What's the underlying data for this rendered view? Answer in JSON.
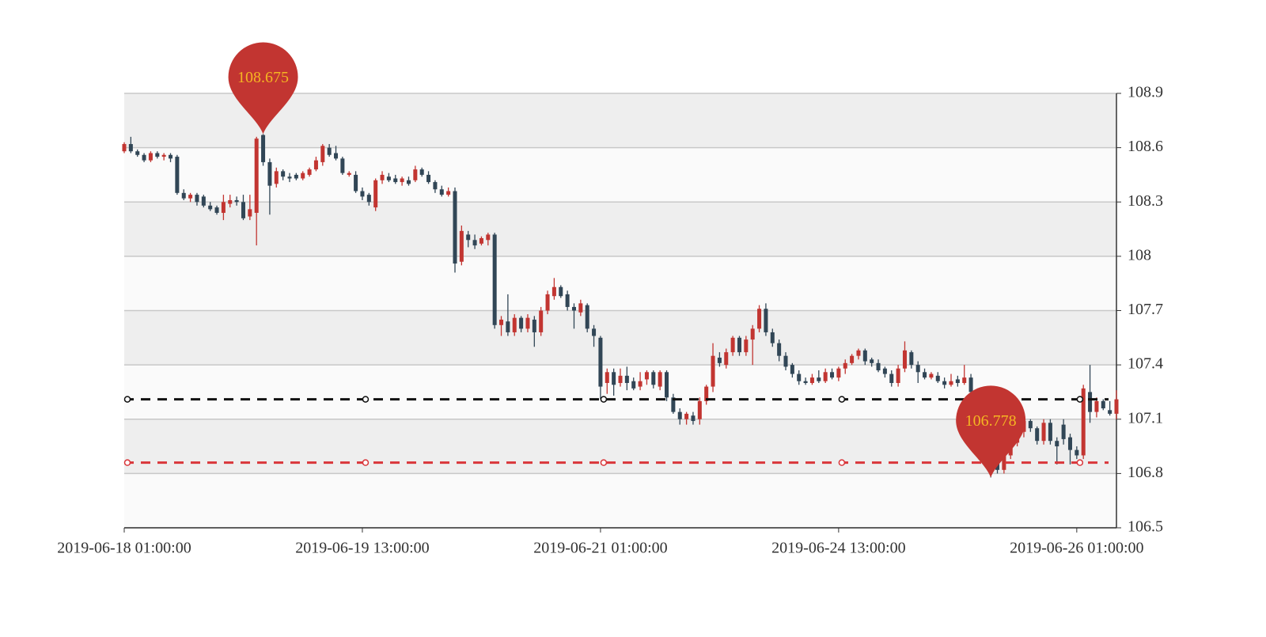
{
  "chart_data": {
    "type": "candlestick",
    "categories": [
      "2019-06-18 01:00:00",
      null,
      null,
      null,
      null,
      null,
      null,
      null,
      null,
      null,
      null,
      null,
      null,
      null,
      null,
      null,
      null,
      null,
      null,
      null,
      null,
      null,
      null,
      null,
      null,
      null,
      null,
      null,
      null,
      null,
      null,
      null,
      null,
      null,
      null,
      null,
      "2019-06-19 13:00:00",
      null,
      null,
      null,
      null,
      null,
      null,
      null,
      null,
      null,
      null,
      null,
      null,
      null,
      null,
      null,
      null,
      null,
      null,
      null,
      null,
      null,
      null,
      null,
      null,
      null,
      null,
      null,
      null,
      null,
      null,
      null,
      null,
      null,
      null,
      null,
      "2019-06-21 01:00:00",
      null,
      null,
      null,
      null,
      null,
      null,
      null,
      null,
      null,
      null,
      null,
      null,
      null,
      null,
      null,
      null,
      null,
      null,
      null,
      null,
      null,
      null,
      null,
      null,
      null,
      null,
      null,
      null,
      null,
      null,
      null,
      null,
      null,
      null,
      null,
      "2019-06-24 13:00:00",
      null,
      null,
      null,
      null,
      null,
      null,
      null,
      null,
      null,
      null,
      null,
      null,
      null,
      null,
      null,
      null,
      null,
      null,
      null,
      null,
      null,
      null,
      null,
      null,
      null,
      null,
      null,
      null,
      null,
      null,
      null,
      null,
      null,
      null,
      null,
      "2019-06-26 01:00:00",
      null,
      null,
      null,
      null,
      null,
      null
    ],
    "series": [
      {
        "up_color": "#c23531",
        "down_color": "#314656",
        "values": [
          [
            108.58,
            108.62,
            108.57,
            108.63
          ],
          [
            108.62,
            108.58,
            108.57,
            108.66
          ],
          [
            108.58,
            108.56,
            108.55,
            108.59
          ],
          [
            108.56,
            108.53,
            108.52,
            108.57
          ],
          [
            108.53,
            108.57,
            108.52,
            108.58
          ],
          [
            108.57,
            108.55,
            108.54,
            108.58
          ],
          [
            108.55,
            108.56,
            108.53,
            108.57
          ],
          [
            108.56,
            108.54,
            108.52,
            108.57
          ],
          [
            108.55,
            108.35,
            108.34,
            108.56
          ],
          [
            108.35,
            108.32,
            108.31,
            108.37
          ],
          [
            108.32,
            108.34,
            108.3,
            108.35
          ],
          [
            108.34,
            108.3,
            108.28,
            108.35
          ],
          [
            108.33,
            108.28,
            108.27,
            108.34
          ],
          [
            108.28,
            108.26,
            108.25,
            108.3
          ],
          [
            108.27,
            108.24,
            108.23,
            108.28
          ],
          [
            108.24,
            108.3,
            108.2,
            108.34
          ],
          [
            108.29,
            108.31,
            108.27,
            108.34
          ],
          [
            108.31,
            108.3,
            108.28,
            108.33
          ],
          [
            108.3,
            108.21,
            108.2,
            108.34
          ],
          [
            108.22,
            108.26,
            108.2,
            108.34
          ],
          [
            108.24,
            108.65,
            108.06,
            108.66
          ],
          [
            108.67,
            108.52,
            108.5,
            108.675
          ],
          [
            108.52,
            108.39,
            108.23,
            108.54
          ],
          [
            108.4,
            108.47,
            108.38,
            108.49
          ],
          [
            108.47,
            108.44,
            108.42,
            108.48
          ],
          [
            108.44,
            108.43,
            108.41,
            108.46
          ],
          [
            108.45,
            108.43,
            108.42,
            108.46
          ],
          [
            108.43,
            108.46,
            108.42,
            108.47
          ],
          [
            108.45,
            108.48,
            108.44,
            108.49
          ],
          [
            108.48,
            108.53,
            108.47,
            108.55
          ],
          [
            108.52,
            108.61,
            108.5,
            108.62
          ],
          [
            108.6,
            108.56,
            108.55,
            108.62
          ],
          [
            108.57,
            108.54,
            108.53,
            108.61
          ],
          [
            108.54,
            108.46,
            108.45,
            108.55
          ],
          [
            108.45,
            108.46,
            108.44,
            108.47
          ],
          [
            108.45,
            108.36,
            108.35,
            108.47
          ],
          [
            108.36,
            108.33,
            108.31,
            108.38
          ],
          [
            108.34,
            108.3,
            108.28,
            108.35
          ],
          [
            108.27,
            108.42,
            108.25,
            108.43
          ],
          [
            108.42,
            108.45,
            108.4,
            108.47
          ],
          [
            108.44,
            108.42,
            108.41,
            108.46
          ],
          [
            108.43,
            108.41,
            108.4,
            108.45
          ],
          [
            108.41,
            108.43,
            108.39,
            108.44
          ],
          [
            108.42,
            108.4,
            108.39,
            108.44
          ],
          [
            108.42,
            108.48,
            108.41,
            108.5
          ],
          [
            108.48,
            108.45,
            108.44,
            108.49
          ],
          [
            108.45,
            108.41,
            108.4,
            108.47
          ],
          [
            108.41,
            108.37,
            108.35,
            108.42
          ],
          [
            108.37,
            108.34,
            108.33,
            108.39
          ],
          [
            108.34,
            108.36,
            108.33,
            108.38
          ],
          [
            108.36,
            107.96,
            107.91,
            108.38
          ],
          [
            107.97,
            108.14,
            107.95,
            108.17
          ],
          [
            108.12,
            108.09,
            108.05,
            108.14
          ],
          [
            108.09,
            108.06,
            108.04,
            108.12
          ],
          [
            108.07,
            108.1,
            108.06,
            108.11
          ],
          [
            108.09,
            108.12,
            108.06,
            108.13
          ],
          [
            108.12,
            107.62,
            107.6,
            108.13
          ],
          [
            107.62,
            107.65,
            107.56,
            107.67
          ],
          [
            107.64,
            107.58,
            107.56,
            107.79
          ],
          [
            107.58,
            107.66,
            107.56,
            107.68
          ],
          [
            107.66,
            107.6,
            107.58,
            107.67
          ],
          [
            107.6,
            107.66,
            107.58,
            107.68
          ],
          [
            107.65,
            107.58,
            107.5,
            107.67
          ],
          [
            107.58,
            107.7,
            107.56,
            107.72
          ],
          [
            107.7,
            107.79,
            107.68,
            107.81
          ],
          [
            107.78,
            107.83,
            107.76,
            107.88
          ],
          [
            107.83,
            107.78,
            107.77,
            107.84
          ],
          [
            107.79,
            107.72,
            107.7,
            107.81
          ],
          [
            107.72,
            107.7,
            107.6,
            107.74
          ],
          [
            107.69,
            107.74,
            107.67,
            107.76
          ],
          [
            107.73,
            107.6,
            107.58,
            107.74
          ],
          [
            107.6,
            107.56,
            107.5,
            107.62
          ],
          [
            107.55,
            107.28,
            107.21,
            107.56
          ],
          [
            107.3,
            107.36,
            107.24,
            107.38
          ],
          [
            107.36,
            107.29,
            107.23,
            107.38
          ],
          [
            107.3,
            107.34,
            107.28,
            107.38
          ],
          [
            107.34,
            107.3,
            107.26,
            107.39
          ],
          [
            107.31,
            107.27,
            107.26,
            107.33
          ],
          [
            107.28,
            107.31,
            107.26,
            107.36
          ],
          [
            107.32,
            107.36,
            107.29,
            107.37
          ],
          [
            107.36,
            107.29,
            107.27,
            107.37
          ],
          [
            107.28,
            107.36,
            107.26,
            107.37
          ],
          [
            107.36,
            107.22,
            107.2,
            107.37
          ],
          [
            107.22,
            107.14,
            107.13,
            107.24
          ],
          [
            107.14,
            107.1,
            107.07,
            107.16
          ],
          [
            107.1,
            107.13,
            107.07,
            107.14
          ],
          [
            107.12,
            107.09,
            107.07,
            107.14
          ],
          [
            107.1,
            107.2,
            107.07,
            107.22
          ],
          [
            107.2,
            107.28,
            107.18,
            107.29
          ],
          [
            107.28,
            107.45,
            107.25,
            107.52
          ],
          [
            107.44,
            107.41,
            107.39,
            107.47
          ],
          [
            107.4,
            107.47,
            107.38,
            107.49
          ],
          [
            107.47,
            107.55,
            107.45,
            107.56
          ],
          [
            107.55,
            107.47,
            107.45,
            107.56
          ],
          [
            107.47,
            107.54,
            107.45,
            107.56
          ],
          [
            107.54,
            107.6,
            107.4,
            107.62
          ],
          [
            107.6,
            107.71,
            107.58,
            107.73
          ],
          [
            107.71,
            107.58,
            107.56,
            107.74
          ],
          [
            107.58,
            107.52,
            107.5,
            107.6
          ],
          [
            107.52,
            107.45,
            107.42,
            107.54
          ],
          [
            107.45,
            107.39,
            107.37,
            107.47
          ],
          [
            107.4,
            107.35,
            107.33,
            107.41
          ],
          [
            107.35,
            107.31,
            107.29,
            107.37
          ],
          [
            107.31,
            107.3,
            107.29,
            107.33
          ],
          [
            107.3,
            107.33,
            107.29,
            107.35
          ],
          [
            107.33,
            107.31,
            107.3,
            107.37
          ],
          [
            107.31,
            107.36,
            107.3,
            107.38
          ],
          [
            107.36,
            107.33,
            107.32,
            107.38
          ],
          [
            107.33,
            107.38,
            107.31,
            107.39
          ],
          [
            107.38,
            107.41,
            107.35,
            107.43
          ],
          [
            107.41,
            107.45,
            107.4,
            107.46
          ],
          [
            107.45,
            107.48,
            107.43,
            107.49
          ],
          [
            107.48,
            107.42,
            107.4,
            107.49
          ],
          [
            107.43,
            107.41,
            107.39,
            107.44
          ],
          [
            107.41,
            107.37,
            107.36,
            107.43
          ],
          [
            107.38,
            107.35,
            107.33,
            107.39
          ],
          [
            107.35,
            107.3,
            107.28,
            107.37
          ],
          [
            107.3,
            107.38,
            107.28,
            107.4
          ],
          [
            107.38,
            107.48,
            107.36,
            107.53
          ],
          [
            107.47,
            107.4,
            107.38,
            107.48
          ],
          [
            107.4,
            107.36,
            107.3,
            107.42
          ],
          [
            107.36,
            107.33,
            107.32,
            107.38
          ],
          [
            107.33,
            107.35,
            107.32,
            107.36
          ],
          [
            107.34,
            107.31,
            107.3,
            107.36
          ],
          [
            107.31,
            107.29,
            107.27,
            107.33
          ],
          [
            107.29,
            107.31,
            107.28,
            107.35
          ],
          [
            107.32,
            107.3,
            107.28,
            107.34
          ],
          [
            107.3,
            107.33,
            107.29,
            107.4
          ],
          [
            107.33,
            107.25,
            107.23,
            107.35
          ],
          [
            107.25,
            107.12,
            107.1,
            107.27
          ],
          [
            107.12,
            107.0,
            106.98,
            107.14
          ],
          [
            107.0,
            106.86,
            106.778,
            107.02
          ],
          [
            106.86,
            106.82,
            106.8,
            106.88
          ],
          [
            106.82,
            106.9,
            106.8,
            106.92
          ],
          [
            106.9,
            106.97,
            106.88,
            106.99
          ],
          [
            106.97,
            107.03,
            106.95,
            107.05
          ],
          [
            107.03,
            107.09,
            107.0,
            107.11
          ],
          [
            107.09,
            107.05,
            107.03,
            107.1
          ],
          [
            107.05,
            106.98,
            106.96,
            107.06
          ],
          [
            106.98,
            107.08,
            106.96,
            107.1
          ],
          [
            107.08,
            106.98,
            106.96,
            107.1
          ],
          [
            106.98,
            106.95,
            106.85,
            107.0
          ],
          [
            107.07,
            106.99,
            106.96,
            107.1
          ],
          [
            107.0,
            106.93,
            106.85,
            107.02
          ],
          [
            106.93,
            106.9,
            106.88,
            106.95
          ],
          [
            106.9,
            107.27,
            106.88,
            107.29
          ],
          [
            107.25,
            107.14,
            107.08,
            107.4
          ],
          [
            107.14,
            107.2,
            107.11,
            107.22
          ],
          [
            107.2,
            107.16,
            107.15,
            107.21
          ],
          [
            107.15,
            107.13,
            107.12,
            107.2
          ],
          [
            107.13,
            107.21,
            107.1,
            107.26
          ]
        ]
      }
    ],
    "mark_points": [
      108.675,
      106.778
    ],
    "mark_point_color": "#c23531",
    "mark_point_label_color": "#f5b622",
    "mark_lines": [
      {
        "value": 107.21,
        "color": "#111111"
      },
      {
        "value": 106.86,
        "color": "#d9363a"
      }
    ],
    "ylim": [
      106.5,
      108.9
    ],
    "yticks": [
      106.5,
      106.8,
      107.1,
      107.4,
      107.7,
      108,
      108.3,
      108.6,
      108.9
    ],
    "y_axis_side": "right",
    "grid": true,
    "band_colors": [
      "#fafafa",
      "#eeeeee"
    ]
  }
}
